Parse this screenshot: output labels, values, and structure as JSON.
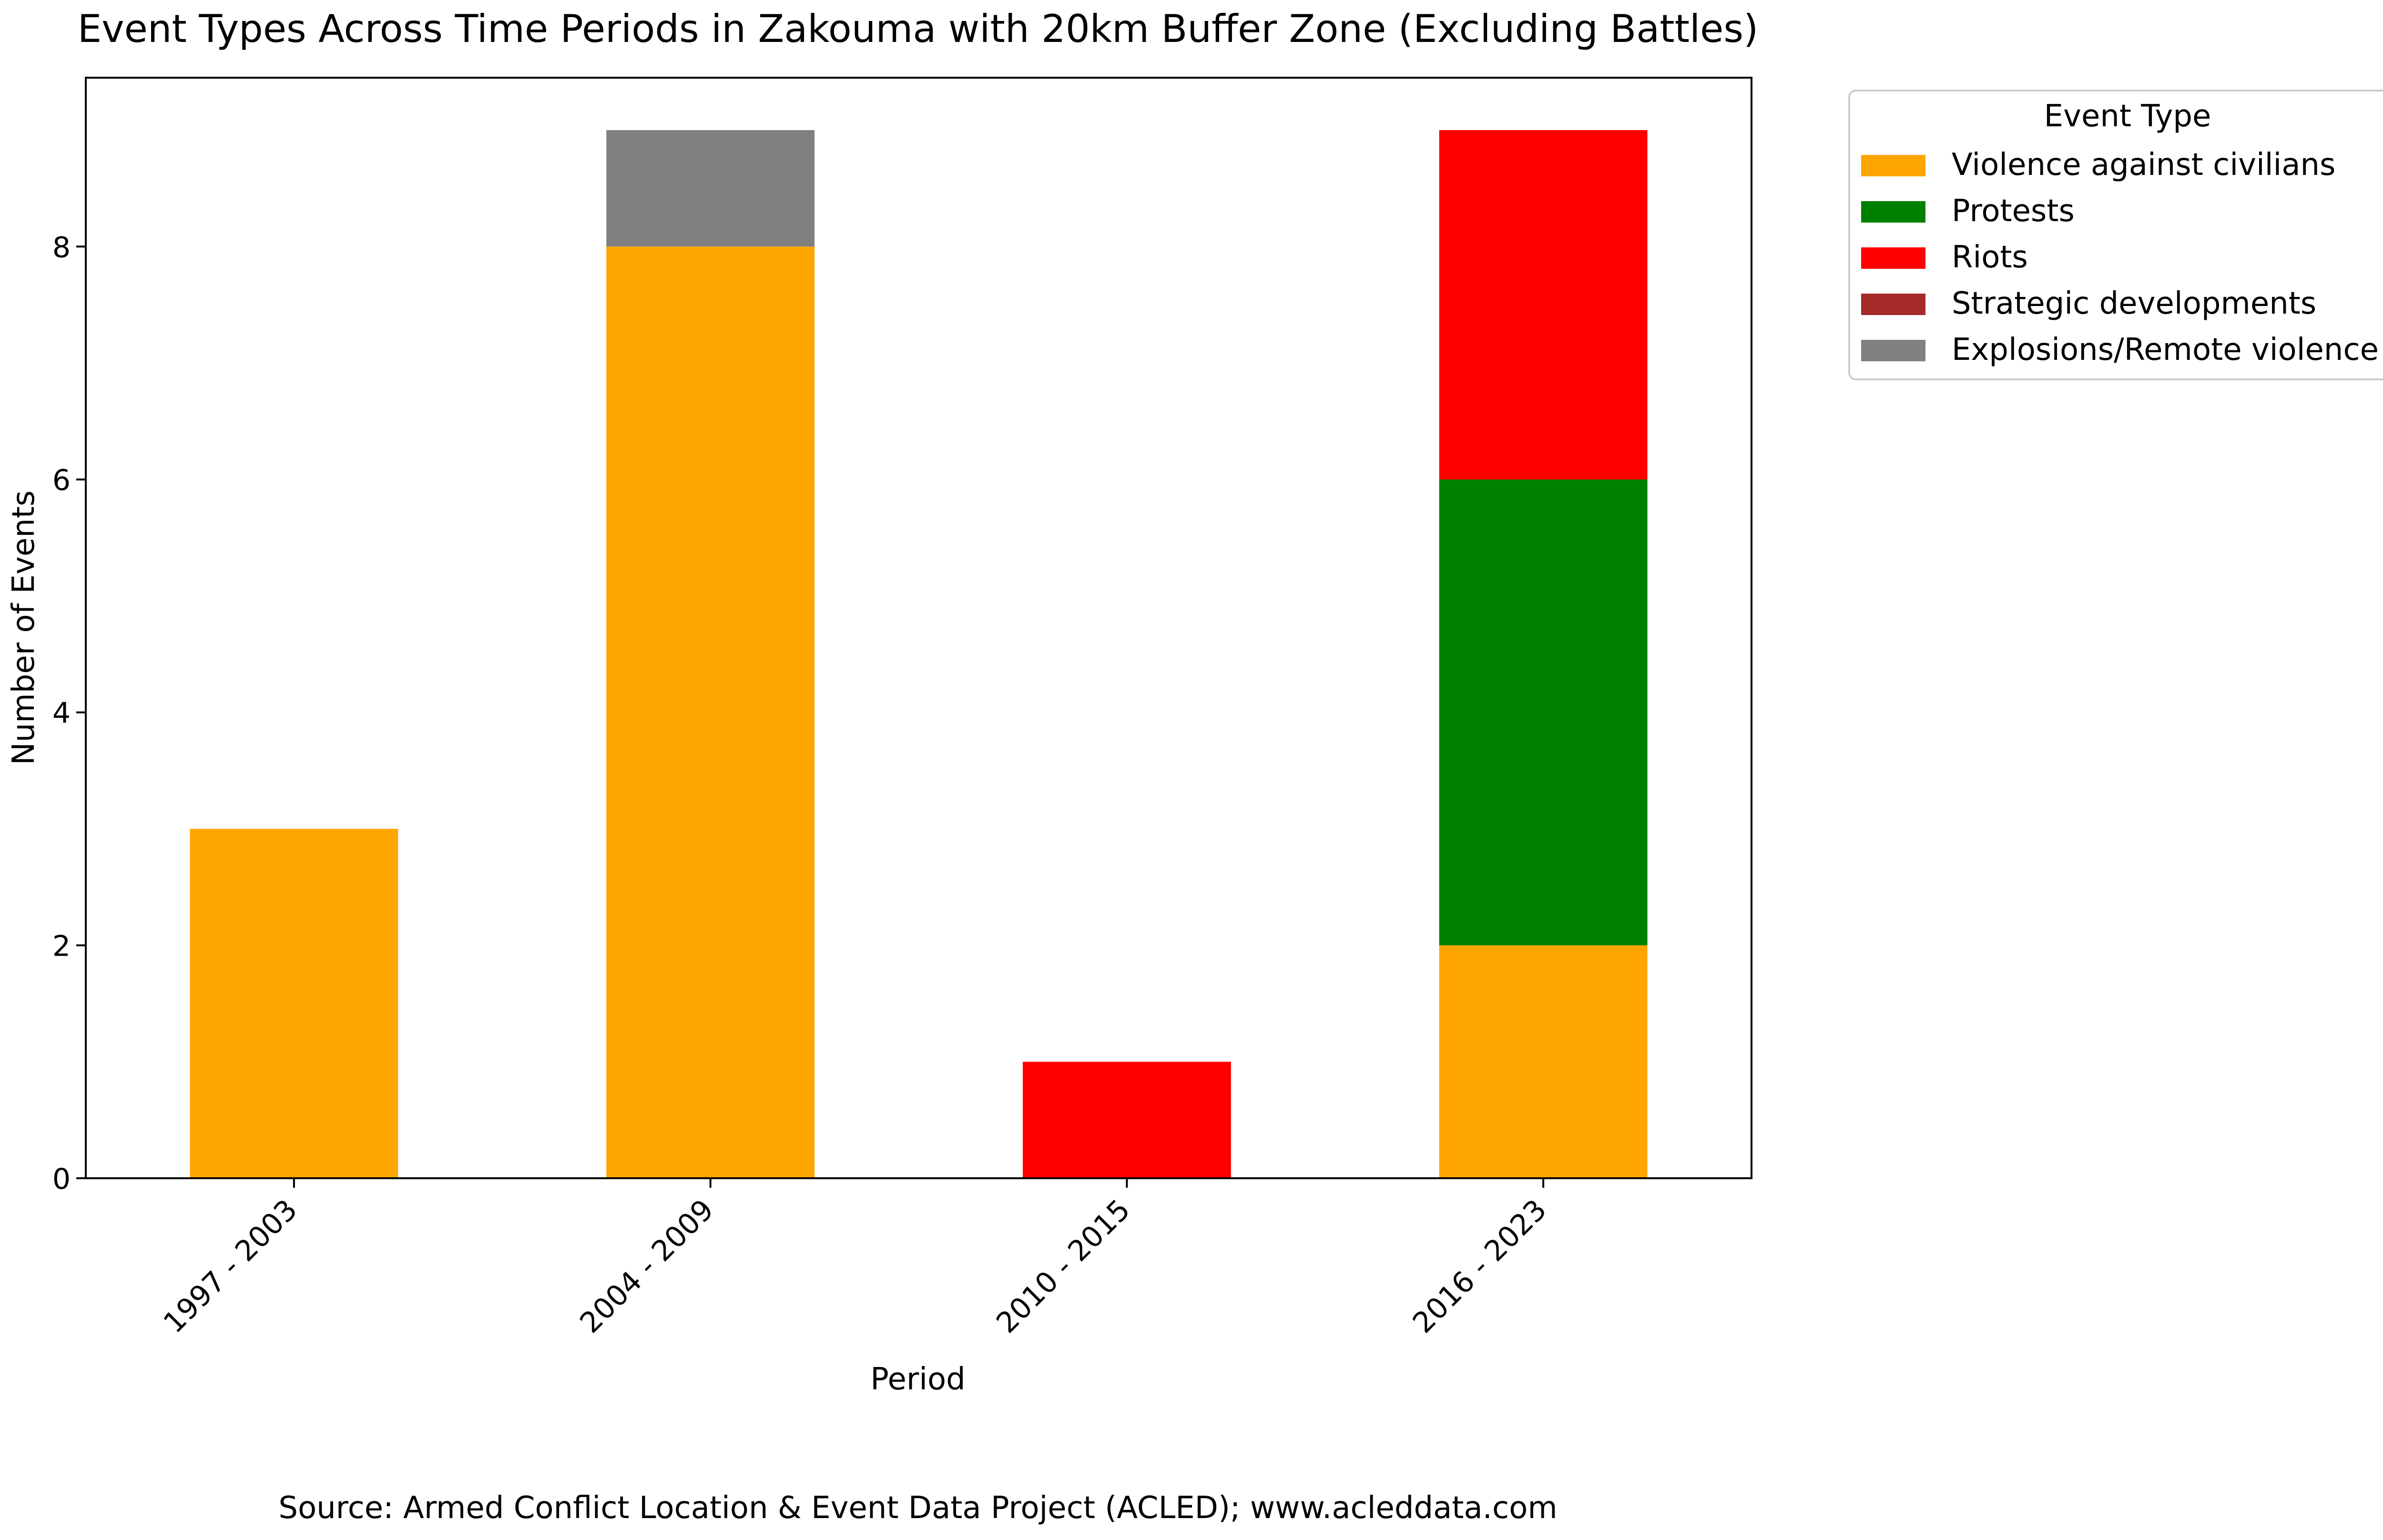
{
  "chart_data": {
    "type": "bar",
    "stacked": true,
    "title": "Event Types Across Time Periods in Zakouma with 20km Buffer Zone (Excluding Battles)",
    "xlabel": "Period",
    "ylabel": "Number of Events",
    "categories": [
      "1997 - 2003",
      "2004 - 2009",
      "2010 - 2015",
      "2016 - 2023"
    ],
    "ylim": [
      0,
      9.45
    ],
    "yticks": [
      "0",
      "2",
      "4",
      "6",
      "8"
    ],
    "series": [
      {
        "name": "Violence against civilians",
        "color": "#ffa500",
        "values": [
          3,
          8,
          0,
          2
        ]
      },
      {
        "name": "Protests",
        "color": "#008000",
        "values": [
          0,
          0,
          0,
          4
        ]
      },
      {
        "name": "Riots",
        "color": "#ff0000",
        "values": [
          0,
          0,
          1,
          3
        ]
      },
      {
        "name": "Strategic developments",
        "color": "#a52a2a",
        "values": [
          0,
          0,
          0,
          0
        ]
      },
      {
        "name": "Explosions/Remote violence",
        "color": "#808080",
        "values": [
          0,
          1,
          0,
          0
        ]
      }
    ],
    "legend": {
      "title": "Event Type",
      "placement": "outside top-right"
    },
    "grid": false
  },
  "source_note": "Source: Armed Conflict Location & Event Data Project (ACLED); www.acleddata.com"
}
